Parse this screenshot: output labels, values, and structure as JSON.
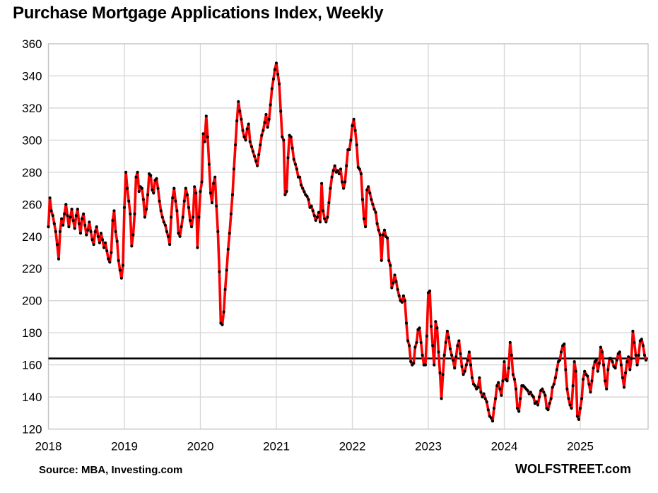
{
  "title": "Purchase Mortgage Applications Index, Weekly",
  "source": "Source: MBA, Investing.com",
  "watermark": "WOLFSTREET.com",
  "colors": {
    "line": "#fb0000",
    "marker": "#000000",
    "grid": "#d6d6d6",
    "border": "#c2c2c2",
    "reference": "#000000",
    "text": "#000000"
  },
  "chart_data": {
    "type": "line",
    "title": "Purchase Mortgage Applications Index, Weekly",
    "xlabel": "",
    "ylabel": "",
    "ylim": [
      120,
      360
    ],
    "y_ticks": [
      120,
      140,
      160,
      180,
      200,
      220,
      240,
      260,
      280,
      300,
      320,
      340,
      360
    ],
    "x_tick_labels": [
      "2018",
      "2019",
      "2020",
      "2021",
      "2022",
      "2023",
      "2024",
      "2025"
    ],
    "x_start_year": 2018,
    "points_per_year": 52,
    "grid": true,
    "legend": "none",
    "reference_line_value": 164,
    "series": [
      {
        "name": "MBA Purchase Mortgage Applications Index (weekly)",
        "values": [
          246,
          264,
          256,
          253,
          248,
          243,
          235,
          226,
          243,
          251,
          247,
          254,
          260,
          253,
          246,
          252,
          257,
          250,
          245,
          253,
          257,
          248,
          242,
          251,
          254,
          247,
          241,
          244,
          249,
          243,
          238,
          235,
          243,
          246,
          240,
          236,
          242,
          238,
          233,
          236,
          231,
          226,
          224,
          230,
          250,
          256,
          243,
          237,
          225,
          219,
          214,
          222,
          258,
          280,
          270,
          262,
          254,
          234,
          241,
          254,
          277,
          280,
          268,
          271,
          270,
          263,
          252,
          257,
          266,
          279,
          278,
          269,
          267,
          275,
          276,
          270,
          262,
          256,
          252,
          249,
          247,
          243,
          240,
          235,
          252,
          264,
          270,
          262,
          256,
          242,
          240,
          246,
          252,
          262,
          270,
          266,
          258,
          250,
          246,
          252,
          271,
          267,
          233,
          252,
          268,
          274,
          304,
          299,
          315,
          302,
          285,
          267,
          261,
          273,
          277,
          259,
          243,
          218,
          186,
          185,
          193,
          207,
          219,
          232,
          242,
          254,
          266,
          282,
          297,
          312,
          324,
          318,
          313,
          306,
          302,
          300,
          307,
          310,
          299,
          296,
          293,
          290,
          287,
          284,
          291,
          297,
          303,
          306,
          311,
          316,
          308,
          313,
          322,
          332,
          338,
          344,
          348,
          341,
          335,
          318,
          302,
          300,
          266,
          268,
          289,
          303,
          302,
          295,
          288,
          285,
          282,
          277,
          277,
          272,
          270,
          268,
          266,
          265,
          263,
          258,
          259,
          256,
          253,
          250,
          252,
          255,
          249,
          273,
          256,
          251,
          249,
          252,
          261,
          270,
          277,
          281,
          284,
          280,
          281,
          279,
          282,
          274,
          270,
          274,
          284,
          294,
          294,
          300,
          309,
          313,
          306,
          297,
          283,
          282,
          279,
          263,
          251,
          246,
          269,
          271,
          267,
          263,
          260,
          257,
          255,
          248,
          244,
          241,
          225,
          241,
          244,
          240,
          239,
          225,
          222,
          208,
          211,
          216,
          212,
          207,
          203,
          200,
          199,
          203,
          200,
          186,
          175,
          172,
          162,
          160,
          161,
          171,
          174,
          182,
          183,
          174,
          166,
          160,
          160,
          178,
          205,
          206,
          184,
          172,
          160,
          187,
          183,
          168,
          155,
          139,
          154,
          166,
          174,
          181,
          177,
          170,
          166,
          163,
          158,
          165,
          172,
          175,
          167,
          159,
          154,
          156,
          160,
          163,
          168,
          160,
          152,
          148,
          147,
          145,
          146,
          152,
          143,
          140,
          142,
          139,
          137,
          132,
          128,
          127,
          125,
          133,
          139,
          147,
          149,
          145,
          141,
          150,
          162,
          151,
          150,
          158,
          174,
          166,
          154,
          151,
          145,
          133,
          131,
          139,
          147,
          147,
          146,
          145,
          144,
          142,
          143,
          141,
          140,
          136,
          137,
          135,
          140,
          144,
          145,
          143,
          141,
          133,
          132,
          136,
          139,
          146,
          148,
          152,
          157,
          162,
          163,
          168,
          172,
          173,
          157,
          145,
          139,
          135,
          133,
          147,
          162,
          156,
          128,
          126,
          133,
          139,
          151,
          156,
          154,
          153,
          148,
          143,
          150,
          158,
          162,
          163,
          156,
          161,
          171,
          168,
          160,
          150,
          145,
          157,
          164,
          164,
          162,
          159,
          158,
          163,
          167,
          168,
          160,
          152,
          146,
          155,
          162,
          165,
          157,
          164,
          181,
          174,
          166,
          160,
          166,
          175,
          176,
          172,
          166,
          163
        ]
      }
    ]
  }
}
